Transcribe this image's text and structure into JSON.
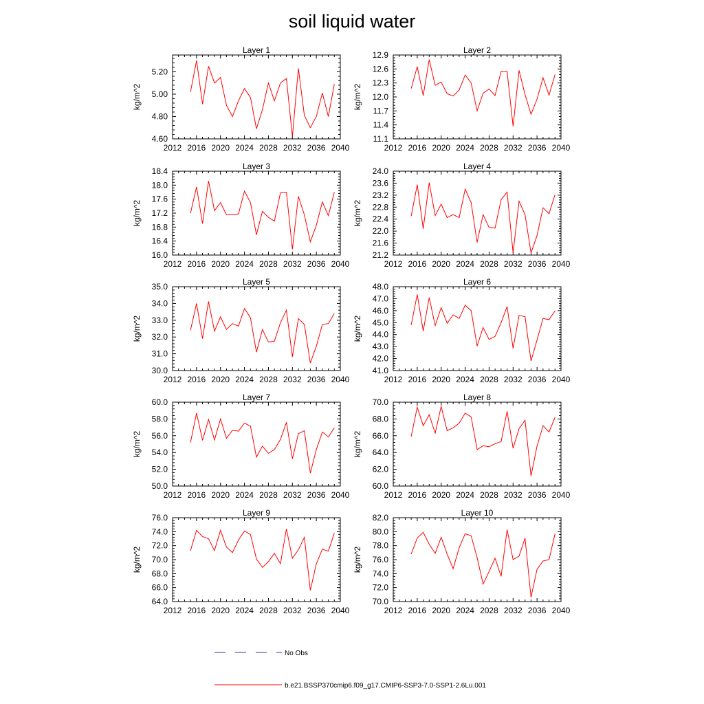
{
  "title": "soil liquid water",
  "legend": {
    "no_obs_label": "No Obs",
    "no_obs_color": "#3333aa",
    "model_label": "b.e21.BSSP370cmip6.f09_g17.CMIP6-SSP3-7.0-SSP1-2.6Lu.001",
    "model_color": "#ff0000"
  },
  "chart_data": [
    {
      "type": "line",
      "title": "Layer 1",
      "ylabel": "kg/m^2",
      "xlabel": "",
      "xlim": [
        2012,
        2040
      ],
      "xticks": [
        2012,
        2016,
        2020,
        2024,
        2028,
        2032,
        2036,
        2040
      ],
      "ylim": [
        4.6,
        5.35
      ],
      "yticks": [
        "4.60",
        "4.80",
        "5.00",
        "5.20"
      ],
      "x": [
        2015,
        2016,
        2017,
        2018,
        2019,
        2020,
        2021,
        2022,
        2023,
        2024,
        2025,
        2026,
        2027,
        2028,
        2029,
        2030,
        2031,
        2032,
        2033,
        2034,
        2035,
        2036,
        2037,
        2038,
        2039
      ],
      "series": [
        {
          "values": [
            5.02,
            5.3,
            4.91,
            5.25,
            5.1,
            5.15,
            4.9,
            4.8,
            4.94,
            5.05,
            4.97,
            4.69,
            4.86,
            5.1,
            4.94,
            5.1,
            5.14,
            4.62,
            5.23,
            4.81,
            4.7,
            4.8,
            5.01,
            4.8,
            5.09
          ]
        }
      ]
    },
    {
      "type": "line",
      "title": "Layer 2",
      "ylabel": "kg/m^2",
      "xlabel": "",
      "xlim": [
        2012,
        2040
      ],
      "xticks": [
        2012,
        2016,
        2020,
        2024,
        2028,
        2032,
        2036,
        2040
      ],
      "ylim": [
        11.1,
        12.9
      ],
      "yticks": [
        "11.1",
        "11.4",
        "11.7",
        "12.0",
        "12.3",
        "12.6",
        "12.9"
      ],
      "x": [
        2015,
        2016,
        2017,
        2018,
        2019,
        2020,
        2021,
        2022,
        2023,
        2024,
        2025,
        2026,
        2027,
        2028,
        2029,
        2030,
        2031,
        2032,
        2033,
        2034,
        2035,
        2036,
        2037,
        2038,
        2039
      ],
      "series": [
        {
          "values": [
            12.18,
            12.65,
            12.03,
            12.8,
            12.25,
            12.32,
            12.07,
            12.02,
            12.15,
            12.47,
            12.3,
            11.7,
            12.08,
            12.17,
            12.03,
            12.55,
            12.55,
            11.37,
            12.57,
            12.05,
            11.63,
            11.95,
            12.41,
            12.04,
            12.48
          ]
        }
      ]
    },
    {
      "type": "line",
      "title": "Layer 3",
      "ylabel": "kg/m^2",
      "xlabel": "",
      "xlim": [
        2012,
        2040
      ],
      "xticks": [
        2012,
        2016,
        2020,
        2024,
        2028,
        2032,
        2036,
        2040
      ],
      "ylim": [
        16.0,
        18.4
      ],
      "yticks": [
        "16.0",
        "16.4",
        "16.8",
        "17.2",
        "17.6",
        "18.0",
        "18.4"
      ],
      "x": [
        2015,
        2016,
        2017,
        2018,
        2019,
        2020,
        2021,
        2022,
        2023,
        2024,
        2025,
        2026,
        2027,
        2028,
        2029,
        2030,
        2031,
        2032,
        2033,
        2034,
        2035,
        2036,
        2037,
        2038,
        2039
      ],
      "series": [
        {
          "values": [
            17.2,
            17.95,
            16.9,
            18.12,
            17.27,
            17.5,
            17.15,
            17.15,
            17.18,
            17.83,
            17.5,
            16.58,
            17.25,
            17.08,
            16.97,
            17.78,
            17.8,
            16.17,
            17.68,
            17.15,
            16.38,
            16.85,
            17.52,
            17.13,
            17.8
          ]
        }
      ]
    },
    {
      "type": "line",
      "title": "Layer 4",
      "ylabel": "kg/m^2",
      "xlabel": "",
      "xlim": [
        2012,
        2040
      ],
      "xticks": [
        2012,
        2016,
        2020,
        2024,
        2028,
        2032,
        2036,
        2040
      ],
      "ylim": [
        21.2,
        24.0
      ],
      "yticks": [
        "21.2",
        "21.6",
        "22.0",
        "22.4",
        "22.8",
        "23.2",
        "23.6",
        "24.0"
      ],
      "x": [
        2015,
        2016,
        2017,
        2018,
        2019,
        2020,
        2021,
        2022,
        2023,
        2024,
        2025,
        2026,
        2027,
        2028,
        2029,
        2030,
        2031,
        2032,
        2033,
        2034,
        2035,
        2036,
        2037,
        2038,
        2039
      ],
      "series": [
        {
          "values": [
            22.5,
            23.55,
            22.08,
            23.62,
            22.52,
            22.9,
            22.45,
            22.55,
            22.45,
            23.4,
            22.95,
            21.62,
            22.55,
            22.12,
            22.1,
            23.05,
            23.3,
            21.27,
            23.0,
            22.55,
            21.27,
            21.85,
            22.78,
            22.58,
            23.22
          ]
        }
      ]
    },
    {
      "type": "line",
      "title": "Layer 5",
      "ylabel": "kg/m^2",
      "xlabel": "",
      "xlim": [
        2012,
        2040
      ],
      "xticks": [
        2012,
        2016,
        2020,
        2024,
        2028,
        2032,
        2036,
        2040
      ],
      "ylim": [
        30.0,
        35.0
      ],
      "yticks": [
        "30.0",
        "31.0",
        "32.0",
        "33.0",
        "34.0",
        "35.0"
      ],
      "x": [
        2015,
        2016,
        2017,
        2018,
        2019,
        2020,
        2021,
        2022,
        2023,
        2024,
        2025,
        2026,
        2027,
        2028,
        2029,
        2030,
        2031,
        2032,
        2033,
        2034,
        2035,
        2036,
        2037,
        2038,
        2039
      ],
      "series": [
        {
          "values": [
            32.4,
            34.0,
            31.9,
            34.12,
            32.35,
            33.2,
            32.45,
            32.8,
            32.65,
            33.7,
            33.15,
            31.1,
            32.45,
            31.7,
            31.75,
            32.85,
            33.6,
            30.82,
            33.1,
            32.75,
            30.45,
            31.45,
            32.75,
            32.8,
            33.4
          ]
        }
      ]
    },
    {
      "type": "line",
      "title": "Layer 6",
      "ylabel": "kg/m^2",
      "xlabel": "",
      "xlim": [
        2012,
        2040
      ],
      "xticks": [
        2012,
        2016,
        2020,
        2024,
        2028,
        2032,
        2036,
        2040
      ],
      "ylim": [
        41.0,
        48.0
      ],
      "yticks": [
        "41.0",
        "42.0",
        "43.0",
        "44.0",
        "45.0",
        "46.0",
        "47.0",
        "48.0"
      ],
      "x": [
        2015,
        2016,
        2017,
        2018,
        2019,
        2020,
        2021,
        2022,
        2023,
        2024,
        2025,
        2026,
        2027,
        2028,
        2029,
        2030,
        2031,
        2032,
        2033,
        2034,
        2035,
        2036,
        2037,
        2038,
        2039
      ],
      "series": [
        {
          "values": [
            44.8,
            47.35,
            44.3,
            47.1,
            44.75,
            46.25,
            44.95,
            45.65,
            45.35,
            46.45,
            46.0,
            43.05,
            44.6,
            43.6,
            43.85,
            45.0,
            46.35,
            42.85,
            45.6,
            45.5,
            41.8,
            43.55,
            45.35,
            45.25,
            45.98
          ]
        }
      ]
    },
    {
      "type": "line",
      "title": "Layer 7",
      "ylabel": "kg/m^2",
      "xlabel": "",
      "xlim": [
        2012,
        2040
      ],
      "xticks": [
        2012,
        2016,
        2020,
        2024,
        2028,
        2032,
        2036,
        2040
      ],
      "ylim": [
        50.0,
        60.0
      ],
      "yticks": [
        "50.0",
        "52.0",
        "54.0",
        "56.0",
        "58.0",
        "60.0"
      ],
      "x": [
        2015,
        2016,
        2017,
        2018,
        2019,
        2020,
        2021,
        2022,
        2023,
        2024,
        2025,
        2026,
        2027,
        2028,
        2029,
        2030,
        2031,
        2032,
        2033,
        2034,
        2035,
        2036,
        2037,
        2038,
        2039
      ],
      "series": [
        {
          "values": [
            55.2,
            58.7,
            55.45,
            57.95,
            55.5,
            58.0,
            55.7,
            56.65,
            56.55,
            57.5,
            57.15,
            53.45,
            54.75,
            53.9,
            54.35,
            55.55,
            57.6,
            53.25,
            56.25,
            56.6,
            51.55,
            54.35,
            56.45,
            55.85,
            56.95
          ]
        }
      ]
    },
    {
      "type": "line",
      "title": "Layer 8",
      "ylabel": "kg/m^2",
      "xlabel": "",
      "xlim": [
        2012,
        2040
      ],
      "xticks": [
        2012,
        2016,
        2020,
        2024,
        2028,
        2032,
        2036,
        2040
      ],
      "ylim": [
        60.0,
        70.0
      ],
      "yticks": [
        "60.0",
        "62.0",
        "64.0",
        "66.0",
        "68.0",
        "70.0"
      ],
      "x": [
        2015,
        2016,
        2017,
        2018,
        2019,
        2020,
        2021,
        2022,
        2023,
        2024,
        2025,
        2026,
        2027,
        2028,
        2029,
        2030,
        2031,
        2032,
        2033,
        2034,
        2035,
        2036,
        2037,
        2038,
        2039
      ],
      "series": [
        {
          "values": [
            65.9,
            69.4,
            67.2,
            68.5,
            66.3,
            69.5,
            66.6,
            66.95,
            67.5,
            68.7,
            68.25,
            64.35,
            64.8,
            64.7,
            65.05,
            65.3,
            68.9,
            64.5,
            66.85,
            67.85,
            61.2,
            64.75,
            67.2,
            66.45,
            68.2
          ]
        }
      ]
    },
    {
      "type": "line",
      "title": "Layer 9",
      "ylabel": "kg/m^2",
      "xlabel": "",
      "xlim": [
        2012,
        2040
      ],
      "xticks": [
        2012,
        2016,
        2020,
        2024,
        2028,
        2032,
        2036,
        2040
      ],
      "ylim": [
        64.0,
        76.0
      ],
      "yticks": [
        "64.0",
        "66.0",
        "68.0",
        "70.0",
        "72.0",
        "74.0",
        "76.0"
      ],
      "x": [
        2015,
        2016,
        2017,
        2018,
        2019,
        2020,
        2021,
        2022,
        2023,
        2024,
        2025,
        2026,
        2027,
        2028,
        2029,
        2030,
        2031,
        2032,
        2033,
        2034,
        2035,
        2036,
        2037,
        2038,
        2039
      ],
      "series": [
        {
          "values": [
            71.3,
            74.2,
            73.3,
            73.0,
            71.3,
            74.2,
            71.8,
            71.0,
            72.8,
            74.1,
            73.6,
            70.1,
            68.9,
            69.7,
            70.9,
            69.4,
            74.4,
            70.2,
            71.4,
            73.2,
            65.6,
            69.4,
            71.5,
            71.2,
            73.8
          ]
        }
      ]
    },
    {
      "type": "line",
      "title": "Layer 10",
      "ylabel": "kg/m^2",
      "xlabel": "",
      "xlim": [
        2012,
        2040
      ],
      "xticks": [
        2012,
        2016,
        2020,
        2024,
        2028,
        2032,
        2036,
        2040
      ],
      "ylim": [
        70.0,
        82.0
      ],
      "yticks": [
        "70.0",
        "72.0",
        "74.0",
        "76.0",
        "78.0",
        "80.0",
        "82.0"
      ],
      "x": [
        2015,
        2016,
        2017,
        2018,
        2019,
        2020,
        2021,
        2022,
        2023,
        2024,
        2025,
        2026,
        2027,
        2028,
        2029,
        2030,
        2031,
        2032,
        2033,
        2034,
        2035,
        2036,
        2037,
        2038,
        2039
      ],
      "series": [
        {
          "values": [
            76.8,
            79.1,
            79.9,
            78.2,
            76.9,
            79.2,
            76.8,
            74.7,
            77.7,
            79.7,
            79.4,
            76.3,
            72.5,
            74.3,
            76.2,
            73.6,
            80.3,
            76.0,
            76.5,
            79.1,
            70.6,
            74.6,
            75.8,
            76.0,
            79.7
          ]
        }
      ]
    }
  ]
}
